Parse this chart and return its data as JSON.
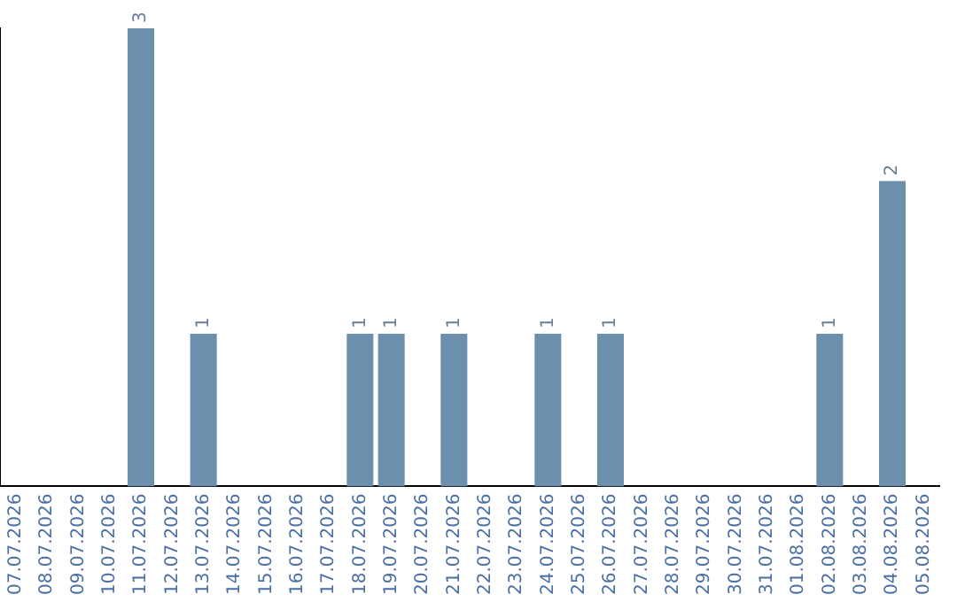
{
  "chart_data": {
    "type": "bar",
    "categories": [
      "07.07.2026",
      "08.07.2026",
      "09.07.2026",
      "10.07.2026",
      "11.07.2026",
      "12.07.2026",
      "13.07.2026",
      "14.07.2026",
      "15.07.2026",
      "16.07.2026",
      "17.07.2026",
      "18.07.2026",
      "19.07.2026",
      "20.07.2026",
      "21.07.2026",
      "22.07.2026",
      "23.07.2026",
      "24.07.2026",
      "25.07.2026",
      "26.07.2026",
      "27.07.2026",
      "28.07.2026",
      "29.07.2026",
      "30.07.2026",
      "31.07.2026",
      "01.08.2026",
      "02.08.2026",
      "03.08.2026",
      "04.08.2026",
      "05.08.2026"
    ],
    "values": [
      null,
      null,
      null,
      null,
      3,
      null,
      1,
      null,
      null,
      null,
      null,
      1,
      1,
      null,
      1,
      null,
      null,
      1,
      null,
      1,
      null,
      null,
      null,
      null,
      null,
      null,
      1,
      null,
      2,
      null
    ],
    "color": "#6d8fae",
    "data_labels": true,
    "grid": false,
    "legend": false,
    "tick_labels": "x"
  }
}
